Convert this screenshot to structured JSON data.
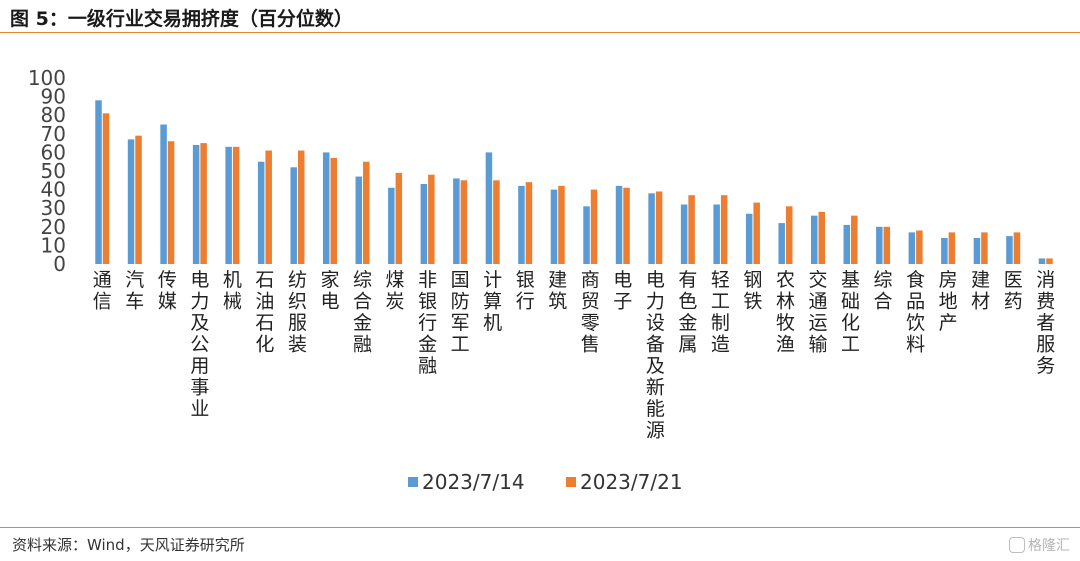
{
  "header": {
    "title": "图 5：一级行业交易拥挤度（百分位数）"
  },
  "footer": {
    "source": "资料来源：Wind，天风证券研究所",
    "watermark": "格隆汇"
  },
  "chart_data": {
    "type": "bar",
    "title": "图 5：一级行业交易拥挤度（百分位数）",
    "xlabel": "",
    "ylabel": "",
    "ylim": [
      0,
      100
    ],
    "yticks": [
      0,
      10,
      20,
      30,
      40,
      50,
      60,
      70,
      80,
      90,
      100
    ],
    "grid": false,
    "legend": "bottom-center",
    "colors": [
      "#5b9bd5",
      "#ed7d31"
    ],
    "categories": [
      "通信",
      "汽车",
      "传媒",
      "电力及公用事业",
      "机械",
      "石油石化",
      "纺织服装",
      "家电",
      "综合金融",
      "煤炭",
      "非银行金融",
      "国防军工",
      "计算机",
      "银行",
      "建筑",
      "商贸零售",
      "电子",
      "电力设备及新能源",
      "有色金属",
      "轻工制造",
      "钢铁",
      "农林牧渔",
      "交通运输",
      "基础化工",
      "综合",
      "食品饮料",
      "房地产",
      "建材",
      "医药",
      "消费者服务"
    ],
    "series": [
      {
        "name": "2023/7/14",
        "values": [
          88,
          67,
          75,
          64,
          63,
          55,
          52,
          60,
          47,
          41,
          43,
          46,
          60,
          42,
          40,
          31,
          42,
          38,
          32,
          32,
          27,
          22,
          26,
          21,
          20,
          17,
          14,
          14,
          15,
          3
        ]
      },
      {
        "name": "2023/7/21",
        "values": [
          81,
          69,
          66,
          65,
          63,
          61,
          61,
          57,
          55,
          49,
          48,
          45,
          45,
          44,
          42,
          40,
          41,
          39,
          37,
          37,
          33,
          31,
          28,
          26,
          20,
          18,
          17,
          17,
          17,
          3
        ]
      }
    ]
  }
}
